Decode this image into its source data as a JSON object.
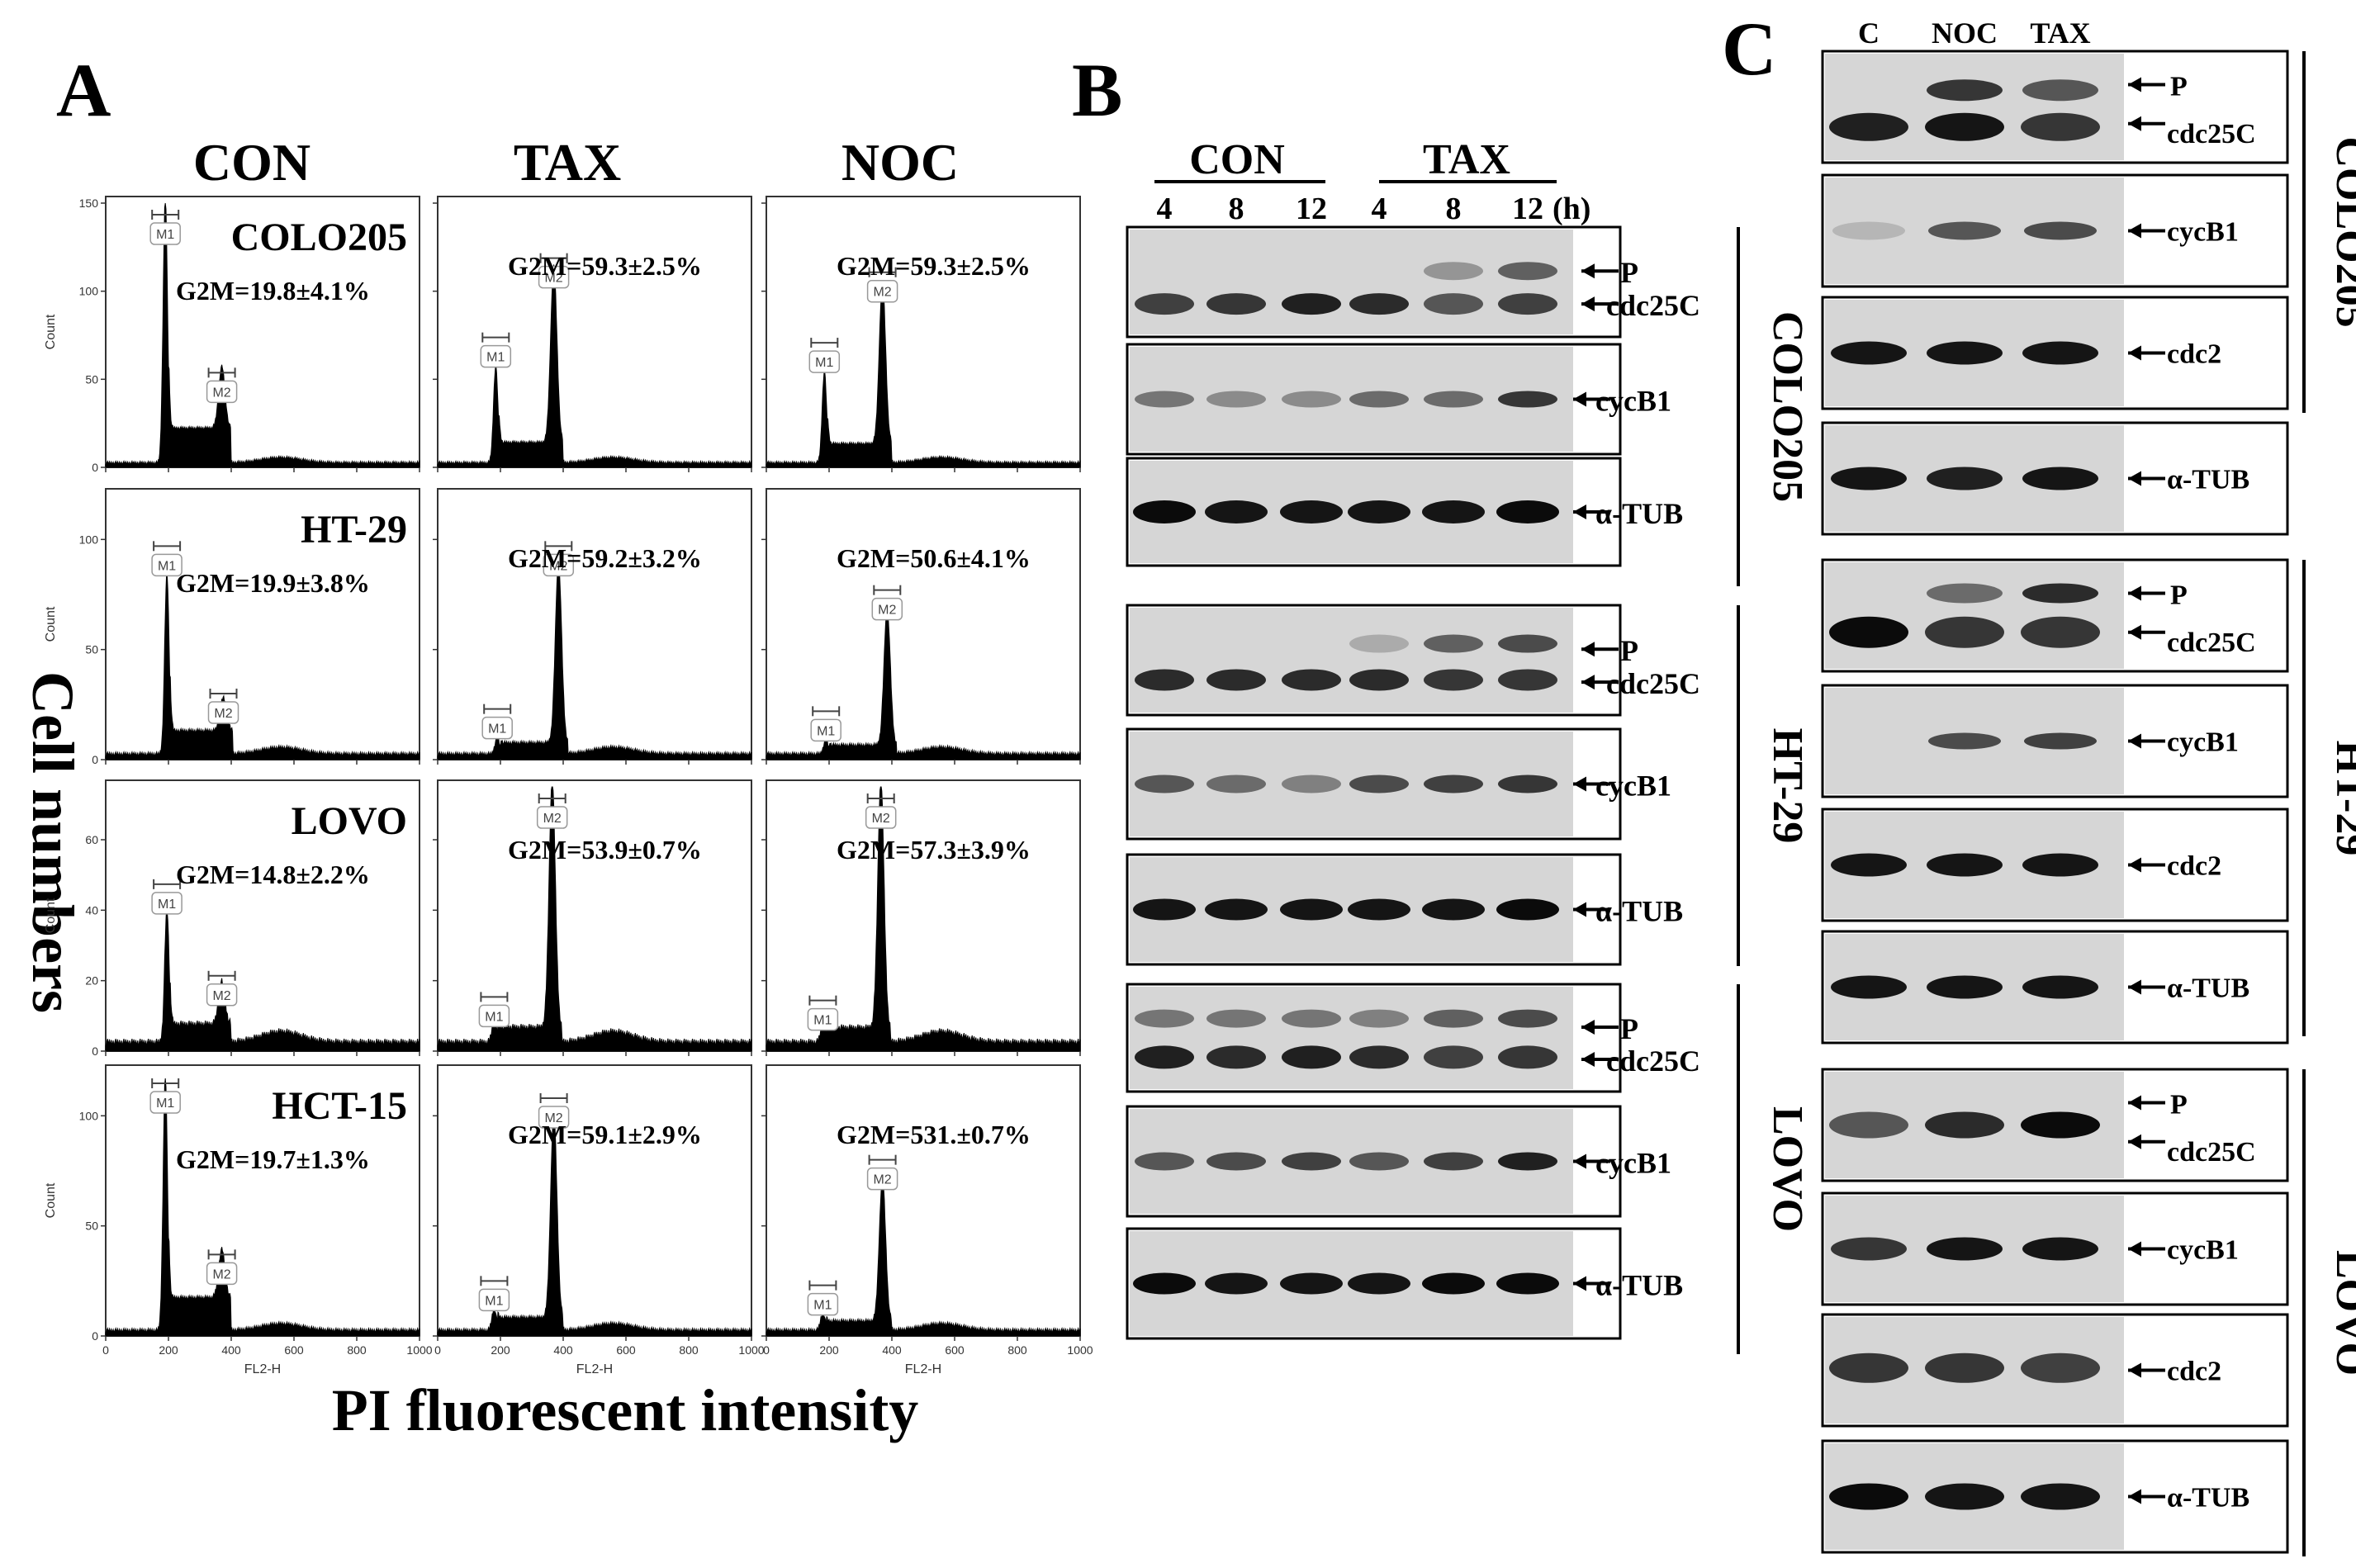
{
  "panel_a": {
    "letter": "A",
    "column_headers": [
      "CON",
      "TAX",
      "NOC"
    ],
    "y_title": "Cell numbers",
    "x_title": "PI fluorescent intensity",
    "axis_x_label": "FL2-H",
    "axis_y_label": "Count",
    "x_ticks": [
      "0",
      "200",
      "400",
      "600",
      "800",
      "1000"
    ],
    "gate_labels": [
      "M1",
      "M2"
    ],
    "cell_lines": [
      "COLO205",
      "HT-29",
      "LOVO",
      "HCT-15"
    ],
    "y_ticks": [
      [
        "0",
        "50",
        "100",
        "150"
      ],
      [
        "0",
        "50",
        "100"
      ],
      [
        "0",
        "20",
        "40",
        "60"
      ],
      [
        "0",
        "50",
        "100"
      ]
    ]
  },
  "chart_data": {
    "type": "histogram",
    "x_label": "FL2-H",
    "y_label": "Count",
    "xlim": [
      0,
      1000
    ],
    "panels": [
      {
        "row": "COLO205",
        "column": "CON",
        "ylim": [
          0,
          150
        ],
        "g1_peak": {
          "x": 190,
          "count": 150
        },
        "g2m_peak": {
          "x": 370,
          "count": 35
        },
        "g2m_text": "G2M=19.8±4.1%"
      },
      {
        "row": "COLO205",
        "column": "TAX",
        "ylim": [
          0,
          150
        ],
        "g1_peak": {
          "x": 185,
          "count": 55
        },
        "g2m_peak": {
          "x": 370,
          "count": 100
        },
        "g2m_text": "G2M=59.3±2.5%"
      },
      {
        "row": "COLO205",
        "column": "NOC",
        "ylim": [
          0,
          150
        ],
        "g1_peak": {
          "x": 185,
          "count": 52
        },
        "g2m_peak": {
          "x": 370,
          "count": 92
        },
        "g2m_text": "G2M=59.3±2.5%"
      },
      {
        "row": "HT-29",
        "column": "CON",
        "ylim": [
          0,
          120
        ],
        "g1_peak": {
          "x": 195,
          "count": 82
        },
        "g2m_peak": {
          "x": 375,
          "count": 15
        },
        "g2m_text": "G2M=19.9±3.8%"
      },
      {
        "row": "HT-29",
        "column": "TAX",
        "ylim": [
          0,
          120
        ],
        "g1_peak": {
          "x": 190,
          "count": 8
        },
        "g2m_peak": {
          "x": 385,
          "count": 82
        },
        "g2m_text": "G2M=59.2±3.2%"
      },
      {
        "row": "HT-29",
        "column": "NOC",
        "ylim": [
          0,
          120
        ],
        "g1_peak": {
          "x": 190,
          "count": 7
        },
        "g2m_peak": {
          "x": 385,
          "count": 62
        },
        "g2m_text": "G2M=50.6±4.1%"
      },
      {
        "row": "LOVO",
        "column": "CON",
        "ylim": [
          0,
          75
        ],
        "g1_peak": {
          "x": 195,
          "count": 38
        },
        "g2m_peak": {
          "x": 370,
          "count": 12
        },
        "g2m_text": "G2M=14.8±2.2%"
      },
      {
        "row": "LOVO",
        "column": "TAX",
        "ylim": [
          0,
          75
        ],
        "g1_peak": {
          "x": 180,
          "count": 6
        },
        "g2m_peak": {
          "x": 365,
          "count": 70
        },
        "g2m_text": "G2M=53.9±0.7%"
      },
      {
        "row": "LOVO",
        "column": "NOC",
        "ylim": [
          0,
          75
        ],
        "g1_peak": {
          "x": 180,
          "count": 5
        },
        "g2m_peak": {
          "x": 365,
          "count": 70
        },
        "g2m_text": "G2M=57.3±3.9%"
      },
      {
        "row": "HCT-15",
        "column": "CON",
        "ylim": [
          0,
          120
        ],
        "g1_peak": {
          "x": 190,
          "count": 115
        },
        "g2m_peak": {
          "x": 370,
          "count": 22
        },
        "g2m_text": "G2M=19.7±1.3%"
      },
      {
        "row": "HCT-15",
        "column": "TAX",
        "ylim": [
          0,
          120
        ],
        "g1_peak": {
          "x": 180,
          "count": 10
        },
        "g2m_peak": {
          "x": 370,
          "count": 93
        },
        "g2m_text": "G2M=59.1±2.9%"
      },
      {
        "row": "HCT-15",
        "column": "NOC",
        "ylim": [
          0,
          120
        ],
        "g1_peak": {
          "x": 180,
          "count": 8
        },
        "g2m_peak": {
          "x": 370,
          "count": 65
        },
        "g2m_text": "G2M=531.±0.7%"
      }
    ]
  },
  "panel_b": {
    "letter": "B",
    "group_con": "CON",
    "group_tax": "TAX",
    "time_labels": [
      "4",
      "8",
      "12",
      "4",
      "8",
      "12"
    ],
    "time_unit": "(h)",
    "cell_lines": [
      "COLO205",
      "HT-29",
      "LOVO"
    ],
    "blot_labels": [
      "P",
      "cdc25C",
      "cycB1",
      "α-TUB"
    ]
  },
  "panel_c": {
    "letter": "C",
    "lane_labels": [
      "C",
      "NOC",
      "TAX"
    ],
    "cell_lines": [
      "COLO205",
      "HT-29",
      "LOVO"
    ],
    "blot_labels": [
      "P",
      "cdc25C",
      "cycB1",
      "cdc2",
      "α-TUB"
    ]
  }
}
